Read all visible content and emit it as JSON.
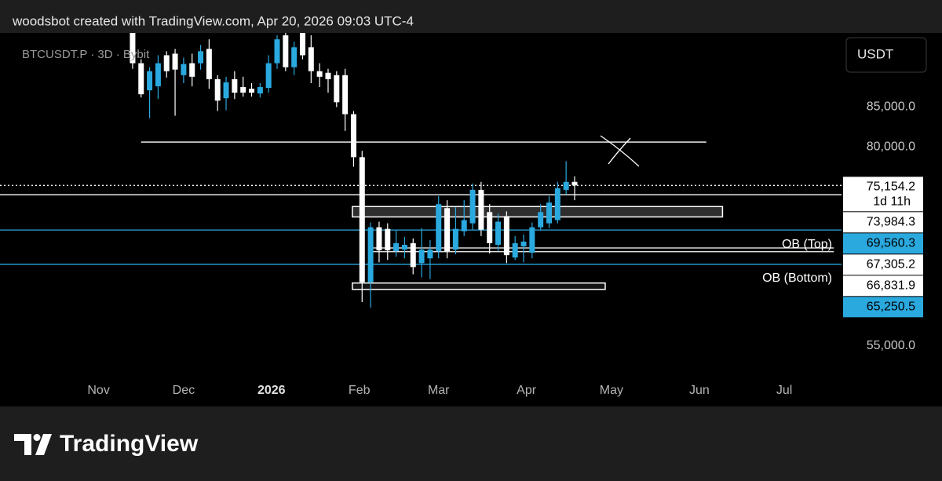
{
  "header": {
    "text": "woodsbot created with TradingView.com, Apr 20, 2026 09:03 UTC-4"
  },
  "chart_data": {
    "type": "candlestick",
    "symbol": "BTCUSDT.P · 3D · Bybit",
    "currency": "USDT",
    "up_color": "#2aa9df",
    "down_color": "#ffffff",
    "open": [
      94500,
      90500,
      87100,
      87600,
      91500,
      91700,
      89000,
      90500,
      90500,
      92300,
      88500,
      86100,
      88500,
      87500,
      87300,
      86700,
      87400,
      90500,
      94000,
      90000,
      94500,
      92500,
      89500,
      89300,
      89000,
      89000,
      84100,
      78700,
      63000,
      69900,
      69700,
      66900,
      67100,
      67900,
      65400,
      66000,
      66900,
      72300,
      67100,
      69400,
      70400,
      74600,
      71800,
      67700,
      71300,
      66100,
      67500,
      66700,
      69900,
      70400,
      70800,
      74600,
      75600
    ],
    "high": [
      95500,
      91000,
      90000,
      91500,
      92000,
      92300,
      91200,
      91700,
      92800,
      93500,
      89000,
      88800,
      89500,
      88800,
      88000,
      88000,
      91500,
      94000,
      94600,
      93200,
      95000,
      94000,
      90500,
      89800,
      89500,
      89800,
      84500,
      79500,
      70500,
      70600,
      70400,
      69500,
      68700,
      68500,
      69800,
      68300,
      73800,
      73300,
      72400,
      73300,
      75400,
      75600,
      72800,
      71600,
      71900,
      68800,
      69000,
      70500,
      72800,
      73800,
      75600,
      78200,
      76300
    ],
    "low": [
      89800,
      86200,
      83600,
      86000,
      88700,
      83900,
      88000,
      87600,
      89700,
      87300,
      84500,
      84600,
      86000,
      86300,
      86300,
      86200,
      86800,
      89800,
      89500,
      89000,
      91000,
      88000,
      87500,
      86800,
      85000,
      82000,
      77500,
      60500,
      59800,
      65500,
      65800,
      66200,
      66000,
      64000,
      63600,
      63400,
      66000,
      66000,
      66500,
      68800,
      69600,
      68800,
      66600,
      66900,
      65400,
      65800,
      65500,
      66000,
      69500,
      69800,
      70400,
      74000,
      73300
    ],
    "close": [
      90500,
      86600,
      89500,
      90500,
      89500,
      89700,
      90400,
      88800,
      92000,
      88500,
      85800,
      88100,
      86800,
      86800,
      86800,
      87500,
      90500,
      93500,
      90000,
      92500,
      91500,
      89500,
      88800,
      88500,
      85600,
      84100,
      78700,
      63000,
      69900,
      67000,
      67000,
      67900,
      67700,
      64900,
      67100,
      67100,
      72800,
      66900,
      69700,
      70800,
      74600,
      69600,
      67900,
      70600,
      66400,
      67900,
      68100,
      69900,
      71800,
      73000,
      74800,
      75600,
      75154.2
    ],
    "xlim": [
      -15.6,
      83.4
    ],
    "xticks": [
      {
        "value": -4,
        "label": "Nov"
      },
      {
        "value": 6,
        "label": "Dec"
      },
      {
        "value": 16.33,
        "label": "2026"
      },
      {
        "value": 26.67,
        "label": "Feb"
      },
      {
        "value": 36,
        "label": "Mar"
      },
      {
        "value": 46.33,
        "label": "Apr"
      },
      {
        "value": 56.33,
        "label": "May"
      },
      {
        "value": 66.67,
        "label": "Jun"
      },
      {
        "value": 76.67,
        "label": "Jul"
      }
    ],
    "ylim": [
      47400,
      94300
    ],
    "yticks": [
      {
        "value": 85000,
        "label": "85,000.0"
      },
      {
        "value": 80000,
        "label": "80,000.0"
      },
      {
        "value": 55000,
        "label": "55,000.0"
      }
    ],
    "levels": [
      {
        "value": 75154.2,
        "label": "75,154.2",
        "countdown": "1d 11h",
        "color": "#ffffff",
        "style": "dotted"
      },
      {
        "value": 73984.3,
        "label": "73,984.3",
        "color": "#ffffff",
        "style": "solid"
      },
      {
        "value": 69560.3,
        "label": "69,560.3",
        "color": "#2aa9df",
        "style": "solid"
      },
      {
        "value": 67305.2,
        "label": "67,305.2",
        "color": "#ffffff",
        "style": "solid",
        "xrange": [
          28.25,
          82.5
        ]
      },
      {
        "value": 66831.9,
        "label": "66,831.9",
        "color": "#ffffff",
        "style": "solid",
        "xrange": [
          28.25,
          82.5
        ]
      },
      {
        "value": 65250.5,
        "label": "65,250.5",
        "color": "#2aa9df",
        "style": "solid"
      }
    ],
    "trendlines": [
      {
        "x": [
          1.0,
          67.5
        ],
        "value": 80600
      }
    ],
    "zones": [
      {
        "x": [
          25.85,
          69.4
        ],
        "y": [
          71200,
          72500
        ]
      },
      {
        "x": [
          25.85,
          55.6
        ],
        "y": [
          62100,
          62900
        ]
      }
    ],
    "annotations": [
      {
        "text": "OB (Top)"
      },
      {
        "text": "OB (Bottom)"
      }
    ]
  },
  "footer": {
    "brand": "TradingView"
  }
}
